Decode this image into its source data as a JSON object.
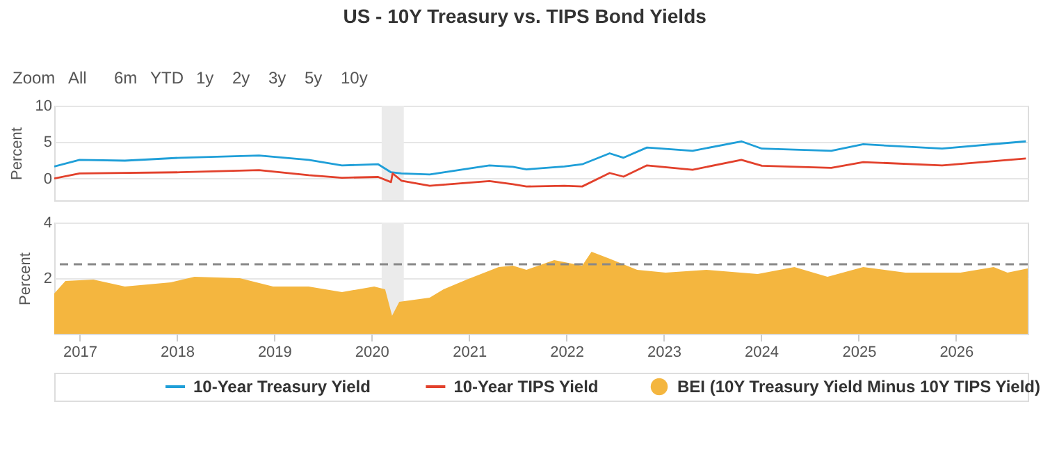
{
  "chart_data": [
    {
      "type": "line",
      "title": "US - 10Y Treasury vs. TIPS Bond Yields",
      "ylabel": "Percent",
      "annotations": [
        "Zoom",
        "All",
        "6m",
        "YTD",
        "1y",
        "2y",
        "3y",
        "5y",
        "10y"
      ],
      "xlim": [
        "2016-09-28",
        "2026-09-27"
      ],
      "ylim": [
        -3,
        10
      ],
      "yticks": [
        0,
        5,
        10
      ],
      "grid": "y",
      "tick_labels": "y",
      "legend": "bottom",
      "bands": [
        {
          "axis": "x",
          "from": "2020-02-08",
          "to": "2020-05-01",
          "color": "#ebebeb"
        }
      ],
      "series": [
        {
          "name": "10-Year Treasury Yield",
          "color": "#1f9fd8",
          "x": [
            "2016-09-28",
            "2017-01-01",
            "2017-06-20",
            "2018-01-15",
            "2018-11-05",
            "2019-05-10",
            "2019-09-12",
            "2020-01-26",
            "2020-03-14",
            "2020-04-22",
            "2020-08-06",
            "2021-03-18",
            "2021-06-14",
            "2021-08-04",
            "2021-12-24",
            "2022-03-01",
            "2022-06-12",
            "2022-08-03",
            "2022-10-30",
            "2023-04-19",
            "2023-10-19",
            "2024-01-04",
            "2024-09-20",
            "2025-01-18",
            "2025-11-10",
            "2026-09-20"
          ],
          "values": [
            1.65,
            2.55,
            2.45,
            2.85,
            3.15,
            2.55,
            1.8,
            1.95,
            0.85,
            0.7,
            0.55,
            1.8,
            1.6,
            1.25,
            1.65,
            1.95,
            3.45,
            2.85,
            4.25,
            3.8,
            5.1,
            4.1,
            3.8,
            4.7,
            4.1,
            5.1
          ]
        },
        {
          "name": "10-Year TIPS Yield",
          "color": "#e2412c",
          "x": [
            "2016-09-28",
            "2017-01-01",
            "2018-01-15",
            "2018-11-05",
            "2019-05-10",
            "2019-09-12",
            "2020-01-26",
            "2020-03-14",
            "2020-03-20",
            "2020-04-22",
            "2020-08-06",
            "2021-03-18",
            "2021-06-14",
            "2021-08-04",
            "2021-12-24",
            "2022-03-01",
            "2022-06-12",
            "2022-08-03",
            "2022-10-30",
            "2023-04-19",
            "2023-10-19",
            "2024-01-04",
            "2024-09-20",
            "2025-01-18",
            "2025-11-10",
            "2026-09-20"
          ],
          "values": [
            0.0,
            0.7,
            0.85,
            1.15,
            0.45,
            0.1,
            0.2,
            -0.5,
            0.7,
            -0.3,
            -1.0,
            -0.35,
            -0.8,
            -1.1,
            -1.0,
            -1.1,
            0.75,
            0.25,
            1.8,
            1.2,
            2.55,
            1.75,
            1.45,
            2.25,
            1.8,
            2.75
          ]
        }
      ]
    },
    {
      "type": "area",
      "ylabel": "Percent",
      "xlim": [
        "2016-09-28",
        "2026-09-27"
      ],
      "ylim": [
        0,
        4
      ],
      "yticks": [
        2,
        4
      ],
      "grid": "y",
      "legend": "bottom",
      "xticks": [
        {
          "value": "2017",
          "label": "2017"
        },
        {
          "value": "2018",
          "label": "2018"
        },
        {
          "value": "2019",
          "label": "2019"
        },
        {
          "value": "2020",
          "label": "2020"
        },
        {
          "value": "2021",
          "label": "2021"
        },
        {
          "value": "2022",
          "label": "2022"
        },
        {
          "value": "2023",
          "label": "2023"
        },
        {
          "value": "2024",
          "label": "2024"
        },
        {
          "value": "2025",
          "label": "2025"
        },
        {
          "value": "2026",
          "label": "2026"
        }
      ],
      "bands": [
        {
          "axis": "x",
          "from": "2020-02-08",
          "to": "2020-05-01",
          "color": "#ebebeb"
        }
      ],
      "ref_lines": [
        {
          "axis": "y",
          "value": 2.5,
          "color": "#888888",
          "line_style": "dashed"
        }
      ],
      "series": [
        {
          "name": "BEI (10Y Treasury Yield Minus 10Y TIPS Yield)",
          "color": "#f4b63f",
          "x": [
            "2016-09-28",
            "2016-11-09",
            "2017-02-22",
            "2017-06-20",
            "2017-12-09",
            "2018-03-08",
            "2018-08-25",
            "2018-12-28",
            "2019-05-10",
            "2019-09-12",
            "2020-01-11",
            "2020-02-21",
            "2020-03-18",
            "2020-04-14",
            "2020-08-06",
            "2020-09-27",
            "2020-12-23",
            "2021-04-22",
            "2021-06-14",
            "2021-08-04",
            "2021-11-16",
            "2022-03-01",
            "2022-04-05",
            "2022-06-12",
            "2022-09-23",
            "2023-01-08",
            "2023-06-10",
            "2023-12-19",
            "2024-05-05",
            "2024-09-06",
            "2025-01-18",
            "2025-06-25",
            "2026-01-18",
            "2026-05-22",
            "2026-07-13",
            "2026-09-27"
          ],
          "values": [
            1.45,
            1.9,
            1.95,
            1.7,
            1.85,
            2.05,
            2.0,
            1.7,
            1.7,
            1.5,
            1.7,
            1.6,
            0.65,
            1.15,
            1.3,
            1.6,
            1.95,
            2.4,
            2.45,
            2.3,
            2.65,
            2.45,
            2.95,
            2.7,
            2.3,
            2.2,
            2.3,
            2.15,
            2.4,
            2.05,
            2.4,
            2.2,
            2.2,
            2.4,
            2.2,
            2.35
          ]
        }
      ]
    }
  ]
}
